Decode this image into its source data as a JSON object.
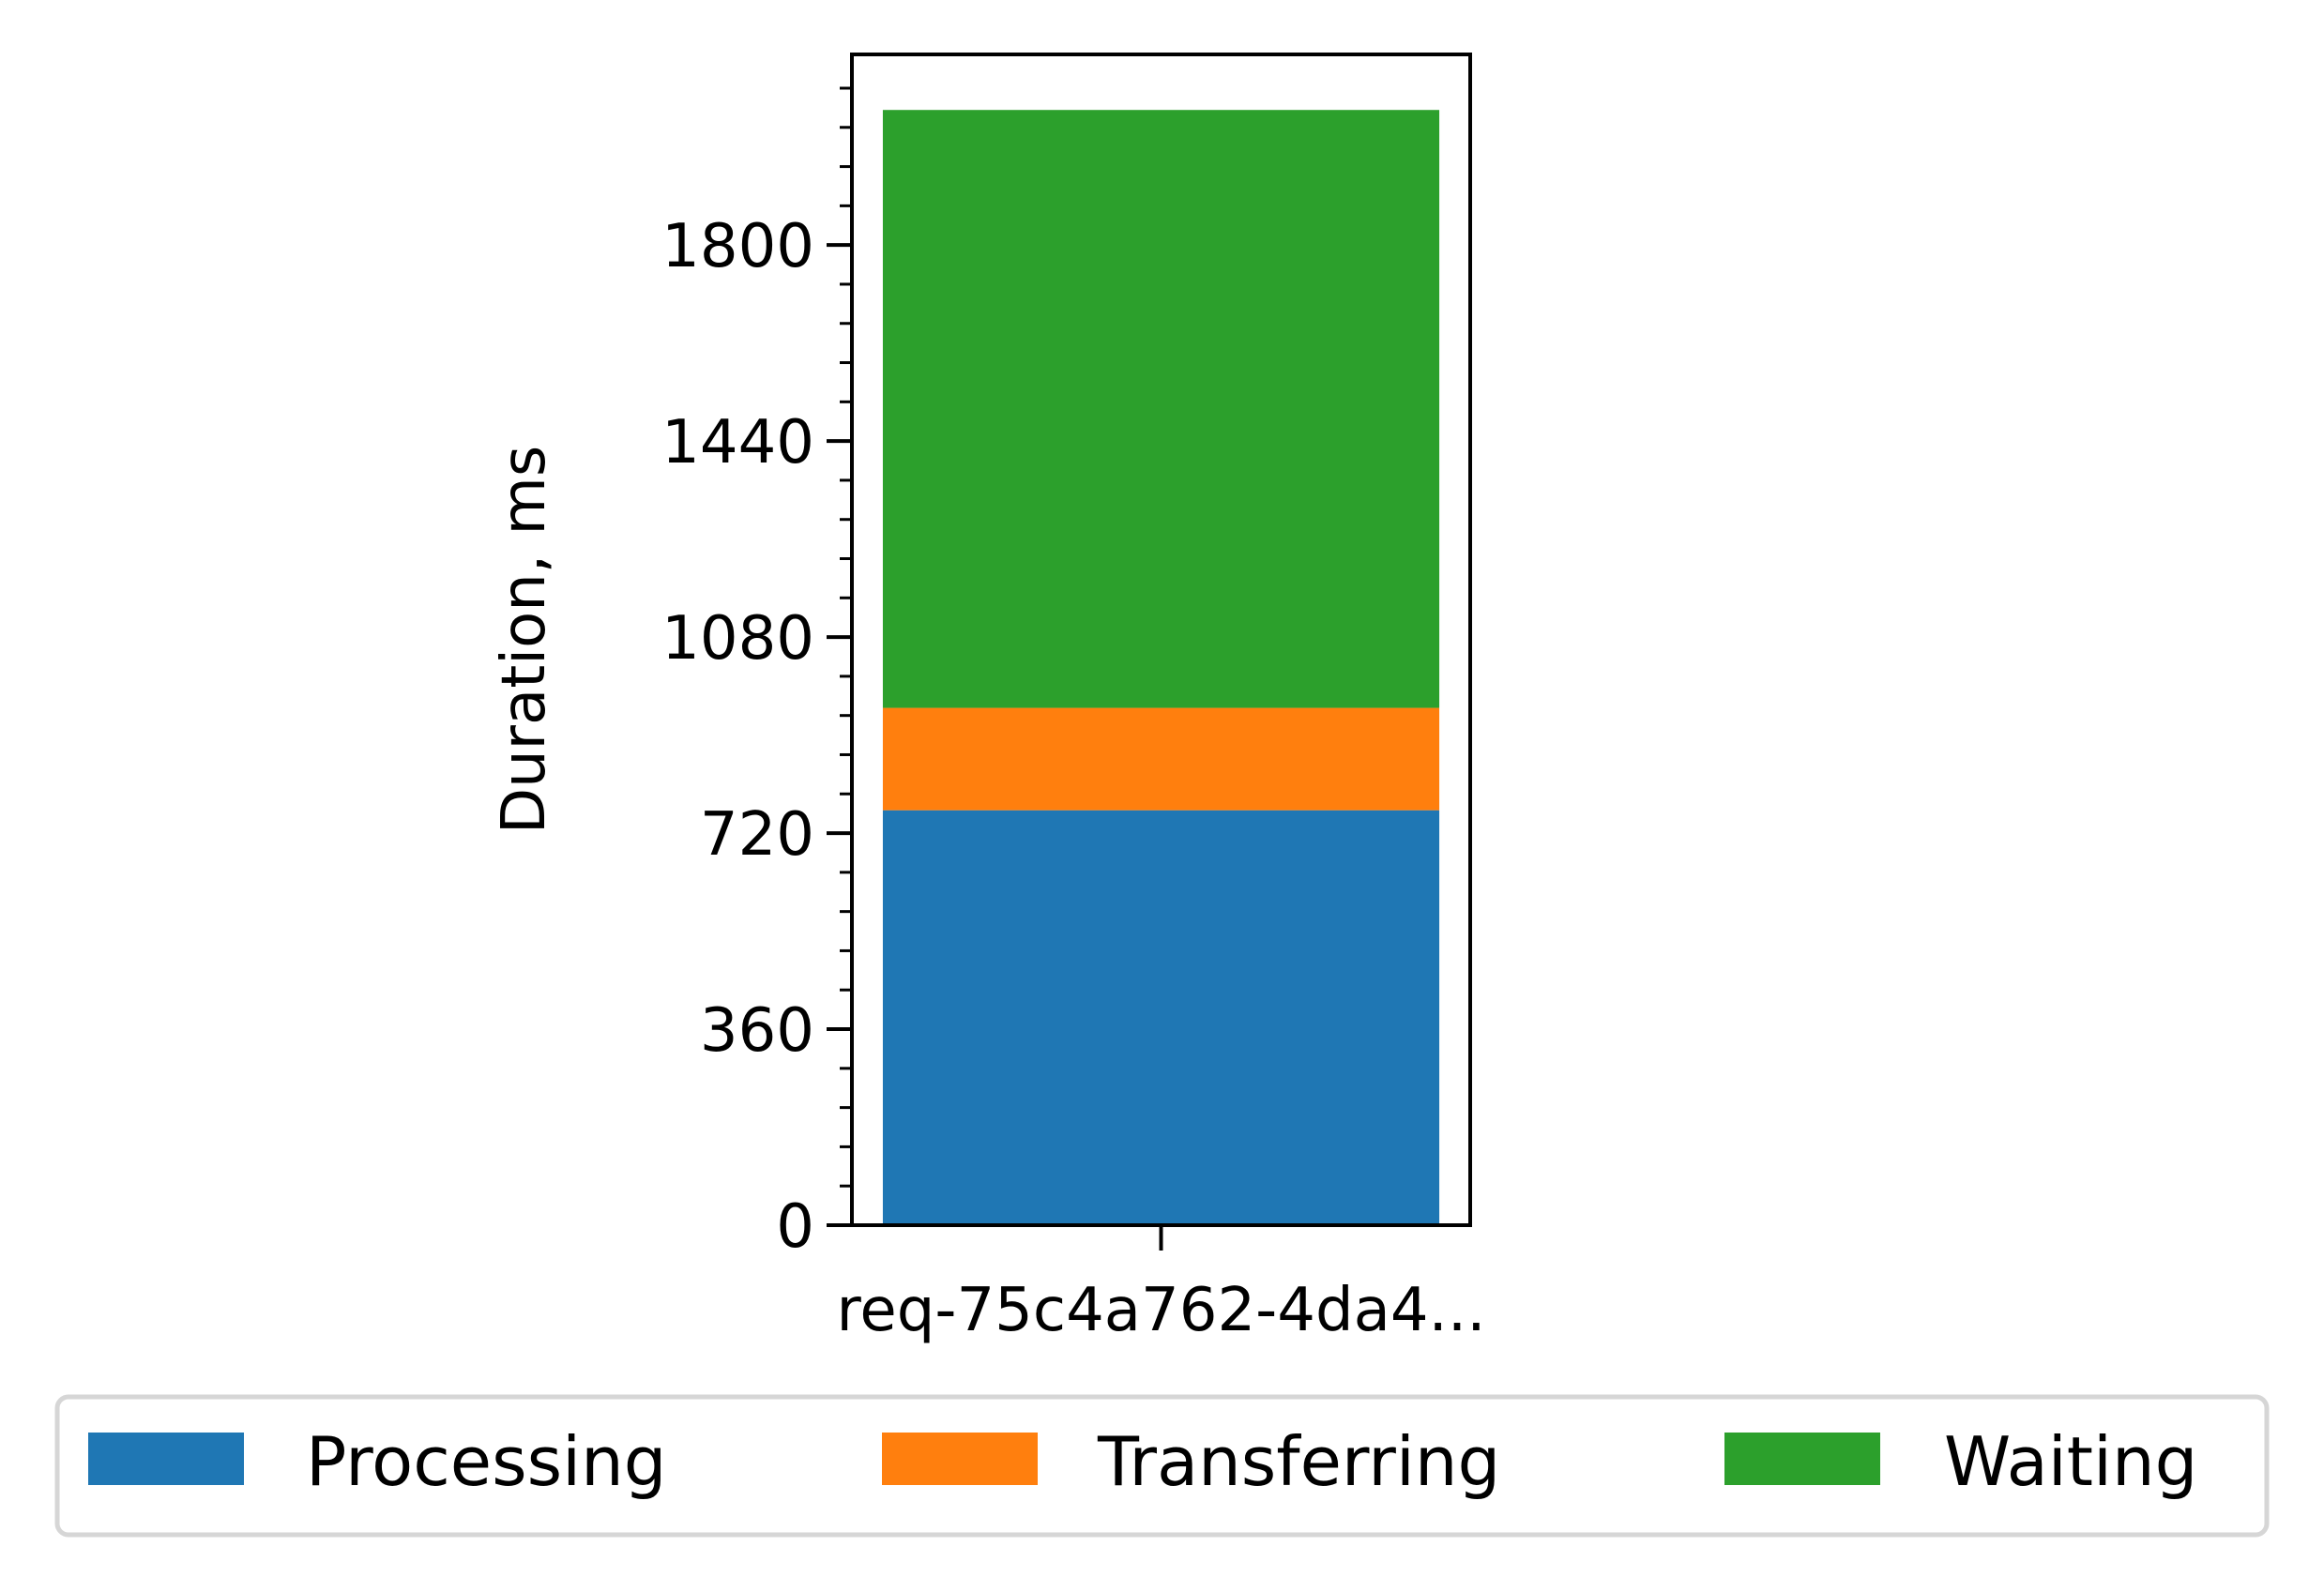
{
  "chart_data": {
    "type": "bar",
    "stacked": true,
    "categories": [
      "req-75c4a762-4da4..."
    ],
    "series": [
      {
        "name": "Processing",
        "values": [
          762
        ],
        "color": "#1f77b4"
      },
      {
        "name": "Transferring",
        "values": [
          188
        ],
        "color": "#ff7f0e"
      },
      {
        "name": "Waiting",
        "values": [
          1098
        ],
        "color": "#2ca02c"
      }
    ],
    "ylabel": "Duration, ms",
    "xlabel": "",
    "title": "",
    "ylim": [
      0,
      2150
    ],
    "yticks": [
      "0",
      "360",
      "720",
      "1080",
      "1440",
      "1800"
    ],
    "ytick_values": [
      0,
      360,
      720,
      1080,
      1440,
      1800
    ],
    "minor_tick_step": 72,
    "grid": false,
    "legend_placement": "bottom-center"
  }
}
